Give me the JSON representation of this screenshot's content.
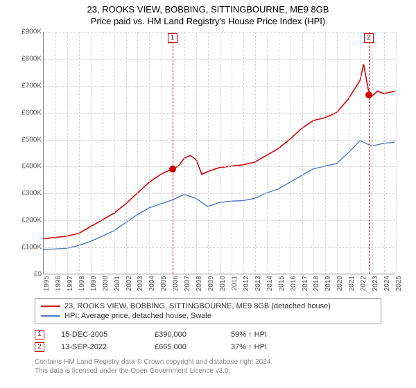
{
  "title": {
    "main": "23, ROOKS VIEW, BOBBING, SITTINGBOURNE, ME9 8GB",
    "sub": "Price paid vs. HM Land Registry's House Price Index (HPI)"
  },
  "chart": {
    "type": "line",
    "background_color": "#ffffff",
    "grid_color": "#cccccc",
    "axis_color": "#888888",
    "tick_fontsize": 10,
    "tick_color": "#555555",
    "ylim": [
      0,
      900
    ],
    "ytick_step": 100,
    "ytick_labels": [
      "£0",
      "£100K",
      "£200K",
      "£300K",
      "£400K",
      "£500K",
      "£600K",
      "£700K",
      "£800K",
      "£900K"
    ],
    "xlim": [
      1995,
      2025
    ],
    "xtick_step": 1,
    "xtick_labels": [
      "1995",
      "1996",
      "1997",
      "1998",
      "1999",
      "2000",
      "2001",
      "2002",
      "2003",
      "2004",
      "2005",
      "2006",
      "2007",
      "2008",
      "2009",
      "2010",
      "2011",
      "2012",
      "2013",
      "2014",
      "2015",
      "2016",
      "2017",
      "2018",
      "2019",
      "2020",
      "2021",
      "2022",
      "2023",
      "2024",
      "2025"
    ],
    "series": [
      {
        "name": "23, ROOKS VIEW, BOBBING, SITTINGBOURNE, ME9 8GB (detached house)",
        "color": "#d40000",
        "line_width": 1.6,
        "x": [
          1995,
          1996,
          1997,
          1998,
          1999,
          2000,
          2001,
          2002,
          2003,
          2004,
          2005,
          2006,
          2006.5,
          2007,
          2007.5,
          2008,
          2008.5,
          2009,
          2010,
          2011,
          2012,
          2013,
          2014,
          2015,
          2016,
          2017,
          2018,
          2019,
          2020,
          2021,
          2022,
          2022.3,
          2022.7,
          2023,
          2023.5,
          2024,
          2025
        ],
        "y": [
          130,
          135,
          140,
          150,
          175,
          200,
          225,
          260,
          300,
          340,
          370,
          390,
          400,
          430,
          440,
          425,
          370,
          380,
          395,
          400,
          405,
          415,
          440,
          465,
          500,
          540,
          570,
          580,
          600,
          650,
          720,
          780,
          685,
          660,
          680,
          670,
          680
        ]
      },
      {
        "name": "HPI: Average price, detached house, Swale",
        "color": "#4a78c4",
        "line_width": 1.4,
        "x": [
          1995,
          1996,
          1997,
          1998,
          1999,
          2000,
          2001,
          2002,
          2003,
          2004,
          2005,
          2006,
          2007,
          2008,
          2009,
          2010,
          2011,
          2012,
          2013,
          2014,
          2015,
          2016,
          2017,
          2018,
          2019,
          2020,
          2021,
          2022,
          2023,
          2024,
          2025
        ],
        "y": [
          90,
          92,
          95,
          105,
          120,
          140,
          160,
          190,
          220,
          245,
          260,
          275,
          295,
          280,
          250,
          265,
          270,
          272,
          280,
          300,
          315,
          340,
          365,
          390,
          400,
          410,
          450,
          495,
          475,
          485,
          490
        ]
      }
    ],
    "markers": [
      {
        "n": "1",
        "x": 2005.96,
        "price": 390,
        "box_color": "#d40000",
        "dot_color": "#d40000"
      },
      {
        "n": "2",
        "x": 2022.7,
        "price": 665,
        "box_color": "#d40000",
        "dot_color": "#d40000"
      }
    ]
  },
  "legend": {
    "border_color": "#999999",
    "items": [
      {
        "color": "#d40000",
        "label": "23, ROOKS VIEW, BOBBING, SITTINGBOURNE, ME9 8GB (detached house)"
      },
      {
        "color": "#4a78c4",
        "label": "HPI: Average price, detached house, Swale"
      }
    ]
  },
  "transactions": [
    {
      "n": "1",
      "box_color": "#d40000",
      "date": "15-DEC-2005",
      "price": "£390,000",
      "pct": "59%",
      "arrow": "↑",
      "vs": "HPI"
    },
    {
      "n": "2",
      "box_color": "#d40000",
      "date": "13-SEP-2022",
      "price": "£665,000",
      "pct": "37%",
      "arrow": "↑",
      "vs": "HPI"
    }
  ],
  "footer": {
    "line1": "Contains HM Land Registry data © Crown copyright and database right 2024.",
    "line2": "This data is licensed under the Open Government Licence v3.0."
  }
}
